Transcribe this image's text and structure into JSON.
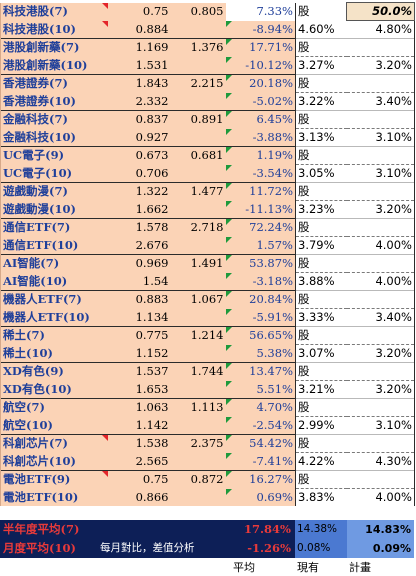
{
  "rows": [
    {
      "name": "科技港股(7)",
      "p1": "0.75",
      "p2": "0.805",
      "pct": "7.33%",
      "cur": "股",
      "tgt": "50.0%",
      "redmark": true,
      "greenmark": false,
      "pairtop": false
    },
    {
      "name": "科技港股(10)",
      "p1": "0.884",
      "p2": "",
      "pct": "-8.94%",
      "cur": "4.60%",
      "tgt": "4.80%",
      "redmark": true,
      "greenmark": true,
      "pairtop": false
    },
    {
      "name": "港股創新藥(7)",
      "p1": "1.169",
      "p2": "1.376",
      "pct": "17.71%",
      "cur": "股",
      "tgt": "",
      "redmark": false,
      "greenmark": true,
      "pairtop": true
    },
    {
      "name": "港股創新藥(10)",
      "p1": "1.531",
      "p2": "",
      "pct": "-10.12%",
      "cur": "3.27%",
      "tgt": "3.20%",
      "redmark": false,
      "greenmark": true,
      "pairtop": false
    },
    {
      "name": "香港證券(7)",
      "p1": "1.843",
      "p2": "2.215",
      "pct": "20.18%",
      "cur": "股",
      "tgt": "",
      "redmark": false,
      "greenmark": true,
      "pairtop": true
    },
    {
      "name": "香港證券(10)",
      "p1": "2.332",
      "p2": "",
      "pct": "-5.02%",
      "cur": "3.22%",
      "tgt": "3.40%",
      "redmark": false,
      "greenmark": true,
      "pairtop": false
    },
    {
      "name": "金融科技(7)",
      "p1": "0.837",
      "p2": "0.891",
      "pct": "6.45%",
      "cur": "股",
      "tgt": "",
      "redmark": false,
      "greenmark": true,
      "pairtop": true
    },
    {
      "name": "金融科技(10)",
      "p1": "0.927",
      "p2": "",
      "pct": "-3.88%",
      "cur": "3.13%",
      "tgt": "3.10%",
      "redmark": false,
      "greenmark": true,
      "pairtop": false
    },
    {
      "name": "UC電子(9)",
      "p1": "0.673",
      "p2": "0.681",
      "pct": "1.19%",
      "cur": "股",
      "tgt": "",
      "redmark": false,
      "greenmark": true,
      "pairtop": true
    },
    {
      "name": "UC電子(10)",
      "p1": "0.706",
      "p2": "",
      "pct": "-3.54%",
      "cur": "3.05%",
      "tgt": "3.10%",
      "redmark": false,
      "greenmark": true,
      "pairtop": false
    },
    {
      "name": "遊戲動漫(7)",
      "p1": "1.322",
      "p2": "1.477",
      "pct": "11.72%",
      "cur": "股",
      "tgt": "",
      "redmark": false,
      "greenmark": true,
      "pairtop": true
    },
    {
      "name": "遊戲動漫(10)",
      "p1": "1.662",
      "p2": "",
      "pct": "-11.13%",
      "cur": "3.23%",
      "tgt": "3.20%",
      "redmark": false,
      "greenmark": true,
      "pairtop": false
    },
    {
      "name": "通信ETF(7)",
      "p1": "1.578",
      "p2": "2.718",
      "pct": "72.24%",
      "cur": "股",
      "tgt": "",
      "redmark": false,
      "greenmark": true,
      "pairtop": true
    },
    {
      "name": "通信ETF(10)",
      "p1": "2.676",
      "p2": "",
      "pct": "1.57%",
      "cur": "3.79%",
      "tgt": "4.00%",
      "redmark": false,
      "greenmark": true,
      "pairtop": false
    },
    {
      "name": "AI智能(7)",
      "p1": "0.969",
      "p2": "1.491",
      "pct": "53.87%",
      "cur": "股",
      "tgt": "",
      "redmark": false,
      "greenmark": true,
      "pairtop": true
    },
    {
      "name": "AI智能(10)",
      "p1": "1.54",
      "p2": "",
      "pct": "-3.18%",
      "cur": "3.88%",
      "tgt": "4.00%",
      "redmark": false,
      "greenmark": true,
      "pairtop": false
    },
    {
      "name": "機器人ETF(7)",
      "p1": "0.883",
      "p2": "1.067",
      "pct": "20.84%",
      "cur": "股",
      "tgt": "",
      "redmark": false,
      "greenmark": true,
      "pairtop": true
    },
    {
      "name": "機器人ETF(10)",
      "p1": "1.134",
      "p2": "",
      "pct": "-5.91%",
      "cur": "3.33%",
      "tgt": "3.40%",
      "redmark": false,
      "greenmark": true,
      "pairtop": false
    },
    {
      "name": "稀土(7)",
      "p1": "0.775",
      "p2": "1.214",
      "pct": "56.65%",
      "cur": "股",
      "tgt": "",
      "redmark": false,
      "greenmark": true,
      "pairtop": true
    },
    {
      "name": "稀土(10)",
      "p1": "1.152",
      "p2": "",
      "pct": "5.38%",
      "cur": "3.07%",
      "tgt": "3.20%",
      "redmark": false,
      "greenmark": true,
      "pairtop": false
    },
    {
      "name": "XD有色(9)",
      "p1": "1.537",
      "p2": "1.744",
      "pct": "13.47%",
      "cur": "股",
      "tgt": "",
      "redmark": false,
      "greenmark": true,
      "pairtop": true
    },
    {
      "name": "XD有色(10)",
      "p1": "1.653",
      "p2": "",
      "pct": "5.51%",
      "cur": "3.21%",
      "tgt": "3.20%",
      "redmark": false,
      "greenmark": true,
      "pairtop": false
    },
    {
      "name": "航空(7)",
      "p1": "1.063",
      "p2": "1.113",
      "pct": "4.70%",
      "cur": "股",
      "tgt": "",
      "redmark": false,
      "greenmark": true,
      "pairtop": true
    },
    {
      "name": "航空(10)",
      "p1": "1.142",
      "p2": "",
      "pct": "-2.54%",
      "cur": "2.99%",
      "tgt": "3.10%",
      "redmark": false,
      "greenmark": true,
      "pairtop": false
    },
    {
      "name": "科創芯片(7)",
      "p1": "1.538",
      "p2": "2.375",
      "pct": "54.42%",
      "cur": "股",
      "tgt": "",
      "redmark": true,
      "greenmark": true,
      "pairtop": true
    },
    {
      "name": "科創芯片(10)",
      "p1": "2.565",
      "p2": "",
      "pct": "-7.41%",
      "cur": "4.22%",
      "tgt": "4.30%",
      "redmark": false,
      "greenmark": true,
      "pairtop": false
    },
    {
      "name": "電池ETF(9)",
      "p1": "0.75",
      "p2": "0.872",
      "pct": "16.27%",
      "cur": "股",
      "tgt": "",
      "redmark": true,
      "greenmark": true,
      "pairtop": true
    },
    {
      "name": "電池ETF(10)",
      "p1": "0.866",
      "p2": "",
      "pct": "0.69%",
      "cur": "3.83%",
      "tgt": "4.00%",
      "redmark": false,
      "greenmark": true,
      "pairtop": false
    }
  ],
  "summary": {
    "row1": {
      "label": "半年度平均(7)",
      "value": "17.84%",
      "cur": "14.38%",
      "tgt": "14.83%"
    },
    "row2": {
      "label": "月度平均(10)",
      "note": "每月對比，差值分析",
      "value": "-1.26%",
      "cur": "0.08%",
      "tgt": "0.09%"
    }
  },
  "footer": {
    "col_avg": "平均",
    "col_cur": "現有",
    "col_tgt": "計畫"
  },
  "colors": {
    "row_fill": "#fbd3b6",
    "name_text": "#1f3f9a",
    "summary_bg": "#0d1f57",
    "summary_red": "#e83a3a",
    "highlight_blue": "#4b79d1"
  }
}
